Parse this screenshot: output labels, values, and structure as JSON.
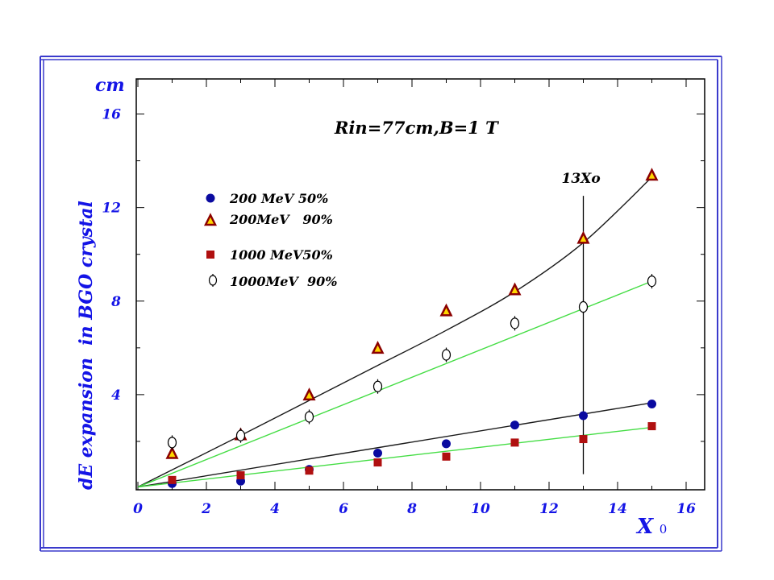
{
  "colors": {
    "frame": "#3a3acc",
    "axis_text": "#1414e6",
    "fit_black": "#1a1a1a",
    "fit_green": "#44dd44",
    "blue_marker": "#0a0aa0",
    "triangle_fill": "#ffd700",
    "triangle_edge": "#8b0000",
    "square_fill": "#b01010"
  },
  "chart_data": {
    "type": "scatter",
    "title": "Rin=77cm,B=1 T",
    "xlabel": "X",
    "xlabel_sub": "0",
    "ylabel": "dE expansion  in BGO crystal",
    "yunit": "cm",
    "xlim": [
      0,
      16
    ],
    "ylim": [
      0,
      17.5
    ],
    "x_ticks": [
      0,
      2,
      4,
      6,
      8,
      10,
      12,
      14,
      16
    ],
    "y_ticks": [
      4,
      8,
      12,
      16
    ],
    "grid": false,
    "legend_position": "upper-left",
    "series": [
      {
        "name": "200 MeV 50%",
        "marker": "circle-filled",
        "x": [
          1,
          3,
          5,
          7,
          9,
          11,
          13,
          15
        ],
        "y": [
          0.2,
          0.3,
          0.8,
          1.5,
          1.9,
          2.7,
          3.1,
          3.6
        ]
      },
      {
        "name": "200MeV   90%",
        "marker": "triangle-filled",
        "x": [
          1,
          3,
          5,
          7,
          9,
          11,
          13,
          15
        ],
        "y": [
          1.5,
          2.3,
          4.0,
          6.0,
          7.6,
          8.5,
          10.7,
          13.4
        ]
      },
      {
        "name": "1000 MeV50%",
        "marker": "square-filled",
        "x": [
          1,
          3,
          5,
          7,
          9,
          11,
          13,
          15
        ],
        "y": [
          0.35,
          0.55,
          0.75,
          1.1,
          1.35,
          1.95,
          2.1,
          2.65
        ]
      },
      {
        "name": "1000MeV  90%",
        "marker": "circle-open-errorbar",
        "x": [
          1,
          3,
          5,
          7,
          9,
          11,
          13,
          15
        ],
        "y": [
          1.95,
          2.25,
          3.05,
          4.35,
          5.7,
          7.05,
          7.75,
          8.85
        ]
      }
    ],
    "fits": [
      {
        "color": "black",
        "x": [
          0,
          3,
          5,
          7,
          9,
          11,
          13,
          15
        ],
        "y": [
          0.05,
          2.25,
          3.75,
          5.25,
          6.75,
          8.4,
          10.5,
          13.3
        ]
      },
      {
        "color": "green",
        "x": [
          0,
          15
        ],
        "y": [
          0.05,
          8.85
        ]
      },
      {
        "color": "black",
        "x": [
          0,
          15
        ],
        "y": [
          0.05,
          3.65
        ]
      },
      {
        "color": "green",
        "x": [
          0,
          15
        ],
        "y": [
          0.05,
          2.6
        ]
      }
    ],
    "annotations": [
      {
        "text": "13Xo",
        "x": 13,
        "y_from": 0.6,
        "y_to": 12.5
      }
    ]
  }
}
